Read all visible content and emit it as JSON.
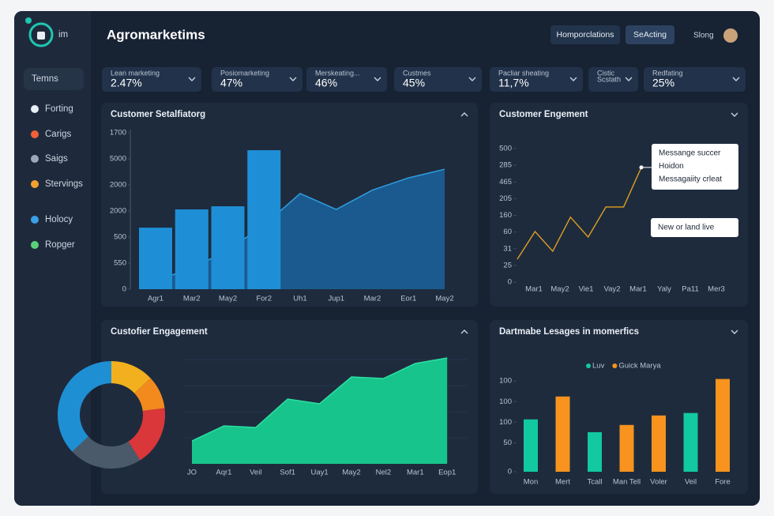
{
  "sidebar": {
    "logo_text": "im",
    "items": [
      "Temns",
      "Forting",
      "Carigs",
      "Saigs",
      "Stervings",
      "Holocy",
      "Ropger"
    ]
  },
  "header": {
    "title": "Agromarketims",
    "buttons": [
      "Homporclations",
      "SeActing"
    ],
    "user": "Slong"
  },
  "kpis": [
    {
      "label_lines": [
        "Lean marketing"
      ],
      "value": "2.47%"
    },
    {
      "label_lines": [
        "Posiomarketing"
      ],
      "value": "47%"
    },
    {
      "label_lines": [
        "Merskeating..."
      ],
      "value": "46%"
    },
    {
      "label_lines": [
        "Custmes"
      ],
      "value": "45%"
    },
    {
      "label_lines": [
        "Pacliar sheating"
      ],
      "value": "11,7%"
    },
    {
      "label_lines": [
        "Cistic",
        "Scstath"
      ]
    },
    {
      "label_lines": [
        "Redfating"
      ],
      "value": "25%"
    }
  ],
  "chart_data": [
    {
      "type": "bar_area",
      "title": "Customer Setalfiatorg",
      "categories": [
        "Agr1",
        "Mar2",
        "May2",
        "For2",
        "Uh1",
        "Jup1",
        "Mar2",
        "Eor1",
        "May2"
      ],
      "series": [
        {
          "type": "bar",
          "color": "#1e8fd6",
          "values": [
            2.36,
            3.06,
            3.18,
            5.33,
            null,
            null,
            null,
            null,
            null
          ]
        },
        {
          "type": "area",
          "color": "#1b5d93",
          "values": [
            0.33,
            0.8,
            1.5,
            2.45,
            3.67,
            3.06,
            3.8,
            4.27,
            4.6
          ]
        }
      ],
      "ylim": [
        0,
        6
      ],
      "yticks": [
        0,
        {
          "value": 1,
          "label": "550"
        },
        {
          "value": 2,
          "label": "500"
        },
        {
          "value": 3,
          "label": "2000"
        },
        {
          "value": 4,
          "label": "2000"
        },
        {
          "value": 5,
          "label": "5000"
        },
        {
          "value": 6,
          "label": "1700"
        }
      ]
    },
    {
      "type": "line",
      "title": "Customer Engement",
      "categories": [
        "Mar1",
        "May2",
        "Vie1",
        "Vay2",
        "Mar1",
        "Yaly",
        "Pa11",
        "Mer3"
      ],
      "series": [
        {
          "color": "#e0a020",
          "values": [
            1.37,
            3.03,
            1.85,
            3.89,
            2.7,
            4.5,
            4.5,
            6.87
          ]
        }
      ],
      "ylim": [
        0,
        8
      ],
      "yticks": [
        0,
        {
          "value": 1,
          "label": "25"
        },
        {
          "value": 2,
          "label": "31"
        },
        {
          "value": 3,
          "label": "60"
        },
        {
          "value": 4,
          "label": "160"
        },
        {
          "value": 5,
          "label": "205"
        },
        {
          "value": 6,
          "label": "465"
        },
        {
          "value": 7,
          "label": "285"
        },
        {
          "value": 8,
          "label": "500"
        }
      ],
      "annotations": [
        {
          "lines": [
            "Messange succer",
            "Hoidon",
            "Messagaiity crleat"
          ]
        },
        {
          "lines": [
            "New or land live"
          ]
        }
      ]
    },
    {
      "type": "pie",
      "values": [
        13,
        10,
        18,
        22,
        37
      ],
      "colors": [
        "#f2b01e",
        "#f28a1e",
        "#d9373a",
        "#4b5a6a",
        "#1f8fd4"
      ]
    },
    {
      "type": "area",
      "title": "Custofier Engagement",
      "categories": [
        "JO",
        "Aqr1",
        "Veil",
        "Sof1",
        "Uay1",
        "May2",
        "Nel2",
        "Mar1",
        "Eop1"
      ],
      "values": [
        29,
        48,
        46,
        82,
        76,
        110,
        108,
        127,
        134
      ],
      "color": "#17c48b",
      "ylim": [
        0,
        150
      ]
    },
    {
      "type": "bar",
      "title": "Dartmabe Lesages in momerfics",
      "categories": [
        "Mon",
        "Mert",
        "Tcall",
        "Man Tell",
        "Voler",
        "Veil",
        "Fore"
      ],
      "series": [
        {
          "name": "Luv",
          "color": "#12c9a0",
          "values": [
            2.54,
            null,
            1.92,
            null,
            null,
            2.85,
            null
          ]
        },
        {
          "name": "Guick Marya",
          "color": "#f7931e",
          "values": [
            null,
            3.65,
            null,
            2.27,
            2.73,
            null,
            4.5
          ]
        }
      ],
      "ylim": [
        0,
        4.6
      ],
      "yticks": [
        0,
        {
          "value": 1.4,
          "label": "50"
        },
        {
          "value": 2.4,
          "label": "100"
        },
        {
          "value": 3.4,
          "label": "100"
        },
        {
          "value": 4.4,
          "label": "100"
        }
      ]
    }
  ]
}
